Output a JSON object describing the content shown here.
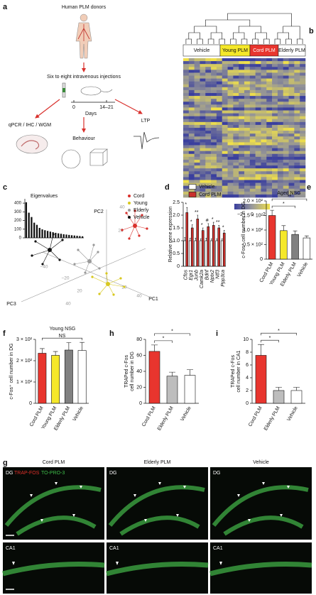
{
  "panels": {
    "a": {
      "letter": "a",
      "donors": "Human PLM donors",
      "injections": "Six to eight intravenous injections",
      "day_start": "0",
      "day_end": "14–21",
      "days": "Days",
      "assays": "qPCR / IHC / WGM",
      "ltp": "LTP",
      "behaviour": "Behaviour"
    },
    "b": {
      "letter": "b",
      "groups": [
        "Vehicle",
        "Young PLM",
        "Cord PLM",
        "Elderly PLM"
      ],
      "colorbar_ticks": [
        "−2",
        "0",
        "2"
      ]
    },
    "c": {
      "letter": "c",
      "axes": [
        "PC1",
        "PC2",
        "PC3"
      ],
      "axis_ticks": [
        "40",
        "20",
        "−40",
        "−20",
        "20",
        "40",
        "20",
        "40"
      ],
      "legend": [
        {
          "name": "Cord",
          "color": "#d9302c"
        },
        {
          "name": "Young",
          "color": "#d8c81e"
        },
        {
          "name": "Elderly",
          "color": "#9a9a9a"
        },
        {
          "name": "Vehicle",
          "color": "#111111"
        }
      ]
    },
    "d": {
      "letter": "d"
    },
    "e": {
      "letter": "e"
    },
    "f": {
      "letter": "f"
    },
    "h": {
      "letter": "h"
    },
    "i": {
      "letter": "i"
    },
    "g": {
      "letter": "g",
      "columns": [
        {
          "title": "Cord PLM",
          "region_top": "DG",
          "region_bottom": "CA1"
        },
        {
          "title": "Elderly PLM",
          "region_top": "DG",
          "region_bottom": "CA1"
        },
        {
          "title": "Vehicle",
          "region_top": "DG",
          "region_bottom": "CA1"
        }
      ],
      "stains": [
        {
          "name": "TRAP-FOS",
          "color": "#e0302a"
        },
        {
          "name": "TO-PRO-3",
          "color": "#3fbf4a"
        }
      ]
    }
  },
  "chart_data": [
    {
      "type": "bar",
      "title": "Eigenvalues",
      "values": [
        410,
        290,
        240,
        175,
        150,
        115,
        98,
        88,
        80,
        72,
        65,
        58,
        52,
        47,
        42,
        38,
        34,
        30,
        27,
        24,
        21,
        18
      ],
      "color": "#111111",
      "ylim": [
        0,
        450
      ],
      "yticks": [
        0,
        100,
        200,
        300,
        400
      ]
    },
    {
      "type": "bar",
      "ylabel": "Relative gene expression",
      "categories": [
        "Cfos",
        "Egr1",
        "Junb",
        "Camk2a",
        "Bdnf",
        "Nptx2",
        "Ntf3",
        "Ppp3ca"
      ],
      "series": [
        {
          "name": "Vehicle",
          "color": "#ffffff",
          "values": [
            1.0,
            1.0,
            1.0,
            1.0,
            1.0,
            1.0,
            1.0,
            1.0
          ],
          "errors": [
            0.12,
            0.1,
            0.1,
            0.08,
            0.1,
            0.08,
            0.08,
            0.08
          ]
        },
        {
          "name": "Cord PLM",
          "color": "#c9302c",
          "values": [
            2.1,
            1.5,
            1.85,
            1.4,
            1.55,
            1.6,
            1.5,
            1.3
          ],
          "errors": [
            0.2,
            0.12,
            0.15,
            0.1,
            0.12,
            0.12,
            0.1,
            0.1
          ]
        }
      ],
      "annotations": [
        "*",
        "*",
        "**",
        "*",
        "#",
        "*",
        "**",
        "*"
      ],
      "ylim": [
        0,
        2.5
      ],
      "yticks": [
        0,
        0.5,
        {
          "value": 1,
          "label": "1.0"
        },
        1.5,
        {
          "value": 2,
          "label": "2.0"
        },
        2.5
      ]
    },
    {
      "type": "bar",
      "title": "Aged NSG",
      "ylabel": "c-Fos⁺ cell number in DG",
      "categories": [
        "Cord PLM",
        "Young PLM",
        "Elderly PLM",
        "Vehicle"
      ],
      "values": [
        150,
        98,
        85,
        73
      ],
      "errors": [
        18,
        17,
        12,
        7
      ],
      "colors": [
        "#e8352e",
        "#f5e82a",
        "#808080",
        "#ffffff"
      ],
      "annotations": [
        {
          "text": "*",
          "between": [
            "Cord PLM",
            "Elderly PLM"
          ]
        },
        {
          "text": "**",
          "between": [
            "Cord PLM",
            "Vehicle"
          ]
        }
      ],
      "ylim": [
        0,
        200
      ],
      "yticks": [
        0,
        {
          "value": 50,
          "label": "0.5 × 10²"
        },
        {
          "value": 100,
          "label": "1.0 × 10²"
        },
        {
          "value": 150,
          "label": "1.5 × 10²"
        },
        {
          "value": 200,
          "label": "2.0 × 10²"
        }
      ]
    },
    {
      "type": "bar",
      "title": "Young NSG",
      "ylabel": "c-Fos⁺ cell number in DG",
      "categories": [
        "Cord PLM",
        "Young PLM",
        "Elderly PLM",
        "Vehicle"
      ],
      "values": [
        235,
        225,
        250,
        248
      ],
      "errors": [
        22,
        18,
        35,
        38
      ],
      "colors": [
        "#e8352e",
        "#f5e82a",
        "#808080",
        "#ffffff"
      ],
      "annotations": [
        {
          "text": "NS",
          "between": [
            "Cord PLM",
            "Vehicle"
          ]
        }
      ],
      "ylim": [
        0,
        300
      ],
      "yticks": [
        0,
        {
          "value": 100,
          "label": "1 × 10²"
        },
        {
          "value": 200,
          "label": "2 × 10²"
        },
        {
          "value": 300,
          "label": "3 × 10²"
        }
      ]
    },
    {
      "type": "bar",
      "ylabel": [
        "TRAPed c-Fos",
        "cell number in DG"
      ],
      "categories": [
        "Cord PLM",
        "Elderly PLM",
        "Vehicle"
      ],
      "values": [
        65,
        34,
        35
      ],
      "errors": [
        8,
        5,
        7
      ],
      "colors": [
        "#e8352e",
        "#bdbdbd",
        "#ffffff"
      ],
      "annotations": [
        {
          "text": "*",
          "between": [
            "Cord PLM",
            "Elderly PLM"
          ]
        },
        {
          "text": "*",
          "between": [
            "Cord PLM",
            "Vehicle"
          ]
        }
      ],
      "ylim": [
        0,
        80
      ],
      "yticks": [
        0,
        20,
        40,
        60,
        80
      ]
    },
    {
      "type": "bar",
      "ylabel": [
        "TRAPed c-Fos",
        "cell number in CA1"
      ],
      "categories": [
        "Cord PLM",
        "Elderly PLM",
        "Vehicle"
      ],
      "values": [
        7.5,
        2,
        2
      ],
      "errors": [
        1.7,
        0.5,
        0.5
      ],
      "colors": [
        "#e8352e",
        "#bdbdbd",
        "#ffffff"
      ],
      "annotations": [
        {
          "text": "*",
          "between": [
            "Cord PLM",
            "Elderly PLM"
          ]
        },
        {
          "text": "*",
          "between": [
            "Cord PLM",
            "Vehicle"
          ]
        }
      ],
      "ylim": [
        0,
        10
      ],
      "yticks": [
        0,
        2,
        4,
        6,
        8,
        10
      ]
    }
  ]
}
